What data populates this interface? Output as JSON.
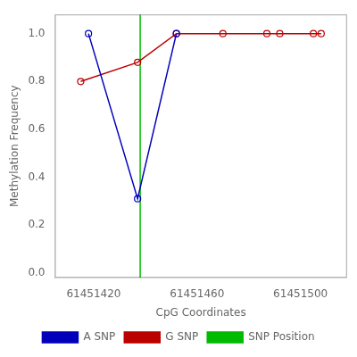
{
  "chart_data": {
    "type": "line",
    "xlabel": "CpG Coordinates",
    "ylabel": "Methylation Frequency",
    "series": [
      {
        "name": "A SNP",
        "color": "#0000BB",
        "marker": "circle",
        "x": [
          61451418,
          61451437,
          61451452
        ],
        "values": [
          1.0,
          0.31,
          1.0
        ]
      },
      {
        "name": "G SNP",
        "color": "#BB0000",
        "marker": "circle",
        "x": [
          61451415,
          61451437,
          61451452,
          61451470,
          61451487,
          61451492,
          61451505,
          61451508
        ],
        "values": [
          0.8,
          0.88,
          1.0,
          1.0,
          1.0,
          1.0,
          1.0,
          1.0
        ]
      }
    ],
    "vline": {
      "name": "SNP Position",
      "x": 61451438,
      "color": "#00BB00"
    },
    "xlim": [
      61451405,
      61451518
    ],
    "xticks": [
      61451420,
      61451460,
      61451500
    ],
    "ylim": [
      -0.02,
      1.08
    ],
    "yticks": [
      {
        "value": 0,
        "label": "0.0"
      },
      0.2,
      0.4,
      0.6,
      0.8,
      {
        "value": 1,
        "label": "1.0"
      }
    ],
    "grid": false,
    "legend": "bottom"
  }
}
